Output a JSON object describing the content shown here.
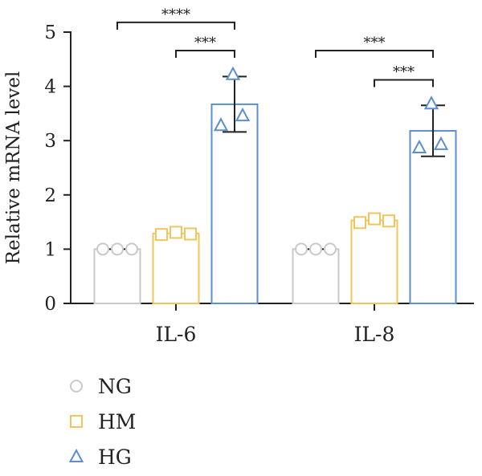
{
  "chart_data": {
    "type": "bar",
    "ylabel": "Relative mRNA level",
    "xlabel": "",
    "ylim": [
      0,
      5
    ],
    "yticks": [
      0,
      1,
      2,
      3,
      4,
      5
    ],
    "grid": false,
    "legend_position": "bottom-left",
    "categories": [
      "IL-6",
      "IL-8"
    ],
    "series": [
      {
        "name": "NG",
        "marker": "circle",
        "color": "#c9c9c9",
        "values": [
          1.0,
          1.0
        ],
        "errors": [
          0.0,
          0.0
        ],
        "points": [
          [
            1.0,
            1.0,
            1.0
          ],
          [
            1.0,
            1.0,
            1.0
          ]
        ]
      },
      {
        "name": "HM",
        "marker": "square",
        "color": "#f2c55c",
        "values": [
          1.29,
          1.53
        ],
        "errors": [
          0.04,
          0.05
        ],
        "points": [
          [
            1.27,
            1.31,
            1.28
          ],
          [
            1.49,
            1.56,
            1.52
          ]
        ]
      },
      {
        "name": "HG",
        "marker": "triangle",
        "color": "#5b8fd0",
        "values": [
          3.67,
          3.18
        ],
        "errors": [
          0.51,
          0.47
        ],
        "points": [
          [
            4.22,
            3.28,
            3.46
          ],
          [
            3.68,
            2.87,
            2.93
          ]
        ]
      }
    ],
    "annotations": [
      {
        "category": 0,
        "from": 0,
        "to": 2,
        "level": 5.18,
        "label": "****"
      },
      {
        "category": 0,
        "from": 1,
        "to": 2,
        "level": 4.66,
        "label": "***"
      },
      {
        "category": 1,
        "from": 0,
        "to": 2,
        "level": 4.66,
        "label": "***"
      },
      {
        "category": 1,
        "from": 1,
        "to": 2,
        "level": 4.12,
        "label": "***"
      }
    ]
  }
}
